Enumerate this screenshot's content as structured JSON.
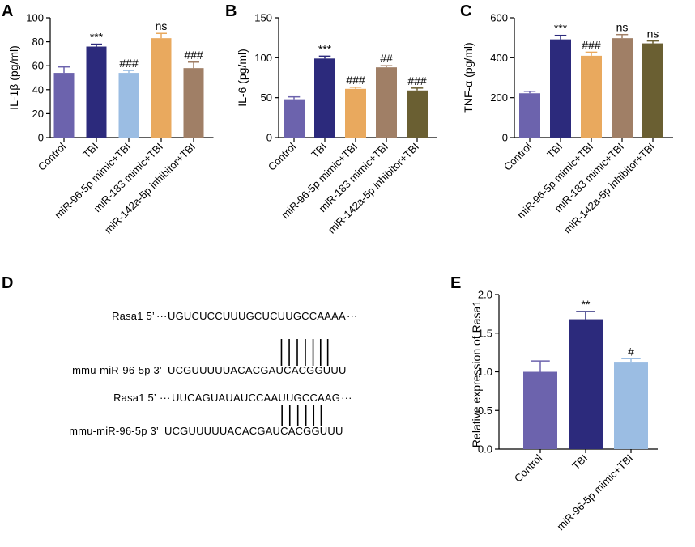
{
  "chart_data": [
    {
      "panel": "A",
      "type": "bar",
      "ylabel": "IL-1β (pg/ml)",
      "ylim": [
        0,
        100
      ],
      "yticks": [
        "0",
        "20",
        "40",
        "60",
        "80",
        "100"
      ],
      "categories": [
        "Control",
        "TBI",
        "miR-96-5p mimic+TBI",
        "miR-183 mimic+TBI",
        "miR-142a-5p inhibitor+TBI"
      ],
      "values": [
        54,
        76,
        54,
        83,
        58
      ],
      "errors": [
        5,
        2,
        2,
        4,
        5
      ],
      "significance": [
        "",
        "***",
        "###",
        "ns",
        "###"
      ],
      "colors": [
        "#6c63ad",
        "#2c2a7c",
        "#9bbde3",
        "#e9a95e",
        "#a07f66"
      ]
    },
    {
      "panel": "B",
      "type": "bar",
      "ylabel": "IL-6 (pg/ml)",
      "ylim": [
        0,
        150
      ],
      "yticks": [
        "0",
        "50",
        "100",
        "150"
      ],
      "categories": [
        "Control",
        "TBI",
        "miR-96-5p mimic+TBI",
        "miR-183 mimic+TBI",
        "miR-142a-5p inhibitor+TBI"
      ],
      "values": [
        48,
        99,
        61,
        88,
        59
      ],
      "errors": [
        3,
        3,
        2,
        2,
        3
      ],
      "significance": [
        "",
        "***",
        "###",
        "##",
        "###"
      ],
      "colors": [
        "#6c63ad",
        "#2c2a7c",
        "#e9a95e",
        "#a07f66",
        "#6a5f32"
      ]
    },
    {
      "panel": "C",
      "type": "bar",
      "ylabel": "TNF-α (pg/ml)",
      "ylim": [
        0,
        600
      ],
      "yticks": [
        "0",
        "200",
        "400",
        "600"
      ],
      "categories": [
        "Control",
        "TBI",
        "miR-96-5p mimic+TBI",
        "miR-183 mimic+TBI",
        "miR-142a-5p inhibitor+TBI"
      ],
      "values": [
        222,
        492,
        410,
        498,
        472
      ],
      "errors": [
        10,
        20,
        18,
        18,
        12
      ],
      "significance": [
        "",
        "***",
        "###",
        "ns",
        "ns"
      ],
      "colors": [
        "#6c63ad",
        "#2c2a7c",
        "#e9a95e",
        "#a07f66",
        "#6a5f32"
      ]
    },
    {
      "panel": "E",
      "type": "bar",
      "ylabel": "Relative  expression of Rasa1",
      "ylim": [
        0,
        2.0
      ],
      "yticks": [
        "0.0",
        "0.5",
        "1.0",
        "1.5",
        "2.0"
      ],
      "categories": [
        "Control",
        "TBI",
        "miR-96-5p mimic+TBI"
      ],
      "values": [
        1.0,
        1.68,
        1.13
      ],
      "errors": [
        0.14,
        0.1,
        0.04
      ],
      "significance": [
        "",
        "**",
        "#"
      ],
      "colors": [
        "#6c63ad",
        "#2c2a7c",
        "#9bbde3"
      ]
    }
  ],
  "panel_d": {
    "letter": "D",
    "sites": [
      {
        "target_label": "Rasa1 5’",
        "target_seq": "UGUCUCCUUUGCUCUUGCCAAAA",
        "mirna_label": "mmu-miR-96-5p 3’",
        "mirna_seq": "UCGUUUUUACACGAUCACGGUUU",
        "pairs": 7
      },
      {
        "target_label": "Rasa1 5’",
        "target_seq": "UUCAGUAUAUCCAAUUGCCAAG",
        "mirna_label": "mmu-miR-96-5p 3’",
        "mirna_seq": "UCGUUUUUACACGAUCACGGUUU",
        "pairs": 6
      }
    ]
  },
  "letters": {
    "A": "A",
    "B": "B",
    "C": "C",
    "E": "E"
  }
}
